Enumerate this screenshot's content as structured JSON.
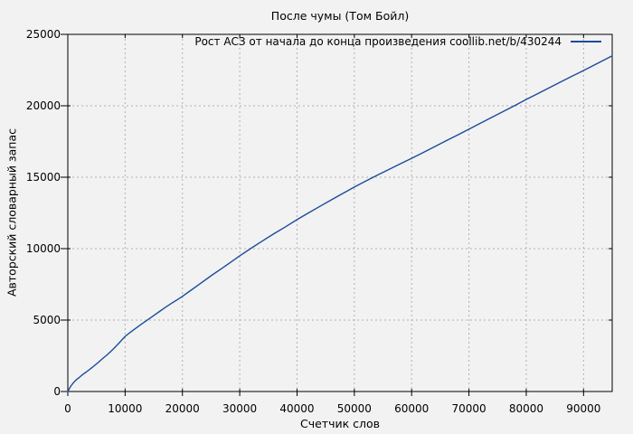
{
  "chart_data": {
    "type": "line",
    "title": "После чумы (Том Бойл)",
    "xlabel": "Счетчик слов",
    "ylabel": "Авторский словарный запас",
    "legend_label": "Рост АСЗ от начала до конца произведения coollib.net/b/430244",
    "legend_position": "top-right-inside",
    "grid": true,
    "xlim": [
      0,
      95000
    ],
    "ylim": [
      0,
      25000
    ],
    "xticks": [
      0,
      10000,
      20000,
      30000,
      40000,
      50000,
      60000,
      70000,
      80000,
      90000
    ],
    "yticks": [
      0,
      5000,
      10000,
      15000,
      20000,
      25000
    ],
    "colors": {
      "background": "#f2f2f2",
      "line": "#1a4c9c",
      "grid": "#b0b0b0",
      "border": "#000000",
      "text": "#000000"
    },
    "series": [
      {
        "name": "Рост АСЗ от начала до конца произведения coollib.net/b/430244",
        "points": [
          [
            0,
            0
          ],
          [
            300,
            230
          ],
          [
            600,
            420
          ],
          [
            1000,
            620
          ],
          [
            1500,
            830
          ],
          [
            2000,
            990
          ],
          [
            2600,
            1190
          ],
          [
            3200,
            1360
          ],
          [
            4000,
            1600
          ],
          [
            5000,
            1930
          ],
          [
            6000,
            2280
          ],
          [
            7000,
            2620
          ],
          [
            8000,
            3000
          ],
          [
            9000,
            3420
          ],
          [
            10000,
            3860
          ],
          [
            11000,
            4170
          ],
          [
            12000,
            4470
          ],
          [
            13000,
            4760
          ],
          [
            14000,
            5040
          ],
          [
            15000,
            5320
          ],
          [
            16000,
            5600
          ],
          [
            17000,
            5880
          ],
          [
            18000,
            6150
          ],
          [
            19000,
            6400
          ],
          [
            20000,
            6660
          ],
          [
            21500,
            7090
          ],
          [
            23000,
            7520
          ],
          [
            25000,
            8100
          ],
          [
            27000,
            8650
          ],
          [
            28500,
            9070
          ],
          [
            30000,
            9500
          ],
          [
            32000,
            10030
          ],
          [
            34000,
            10550
          ],
          [
            36000,
            11050
          ],
          [
            38000,
            11530
          ],
          [
            40000,
            12030
          ],
          [
            42000,
            12500
          ],
          [
            44000,
            12960
          ],
          [
            46000,
            13420
          ],
          [
            48000,
            13870
          ],
          [
            50000,
            14310
          ],
          [
            52000,
            14730
          ],
          [
            54000,
            15140
          ],
          [
            56000,
            15540
          ],
          [
            58000,
            15930
          ],
          [
            60000,
            16320
          ],
          [
            62000,
            16730
          ],
          [
            64000,
            17140
          ],
          [
            66000,
            17550
          ],
          [
            68000,
            17950
          ],
          [
            70000,
            18360
          ],
          [
            72000,
            18780
          ],
          [
            74000,
            19190
          ],
          [
            76000,
            19610
          ],
          [
            78000,
            20020
          ],
          [
            80000,
            20440
          ],
          [
            82000,
            20850
          ],
          [
            84000,
            21260
          ],
          [
            86000,
            21670
          ],
          [
            88000,
            22070
          ],
          [
            90000,
            22470
          ],
          [
            92000,
            22880
          ],
          [
            93500,
            23190
          ],
          [
            95000,
            23500
          ]
        ]
      }
    ]
  }
}
